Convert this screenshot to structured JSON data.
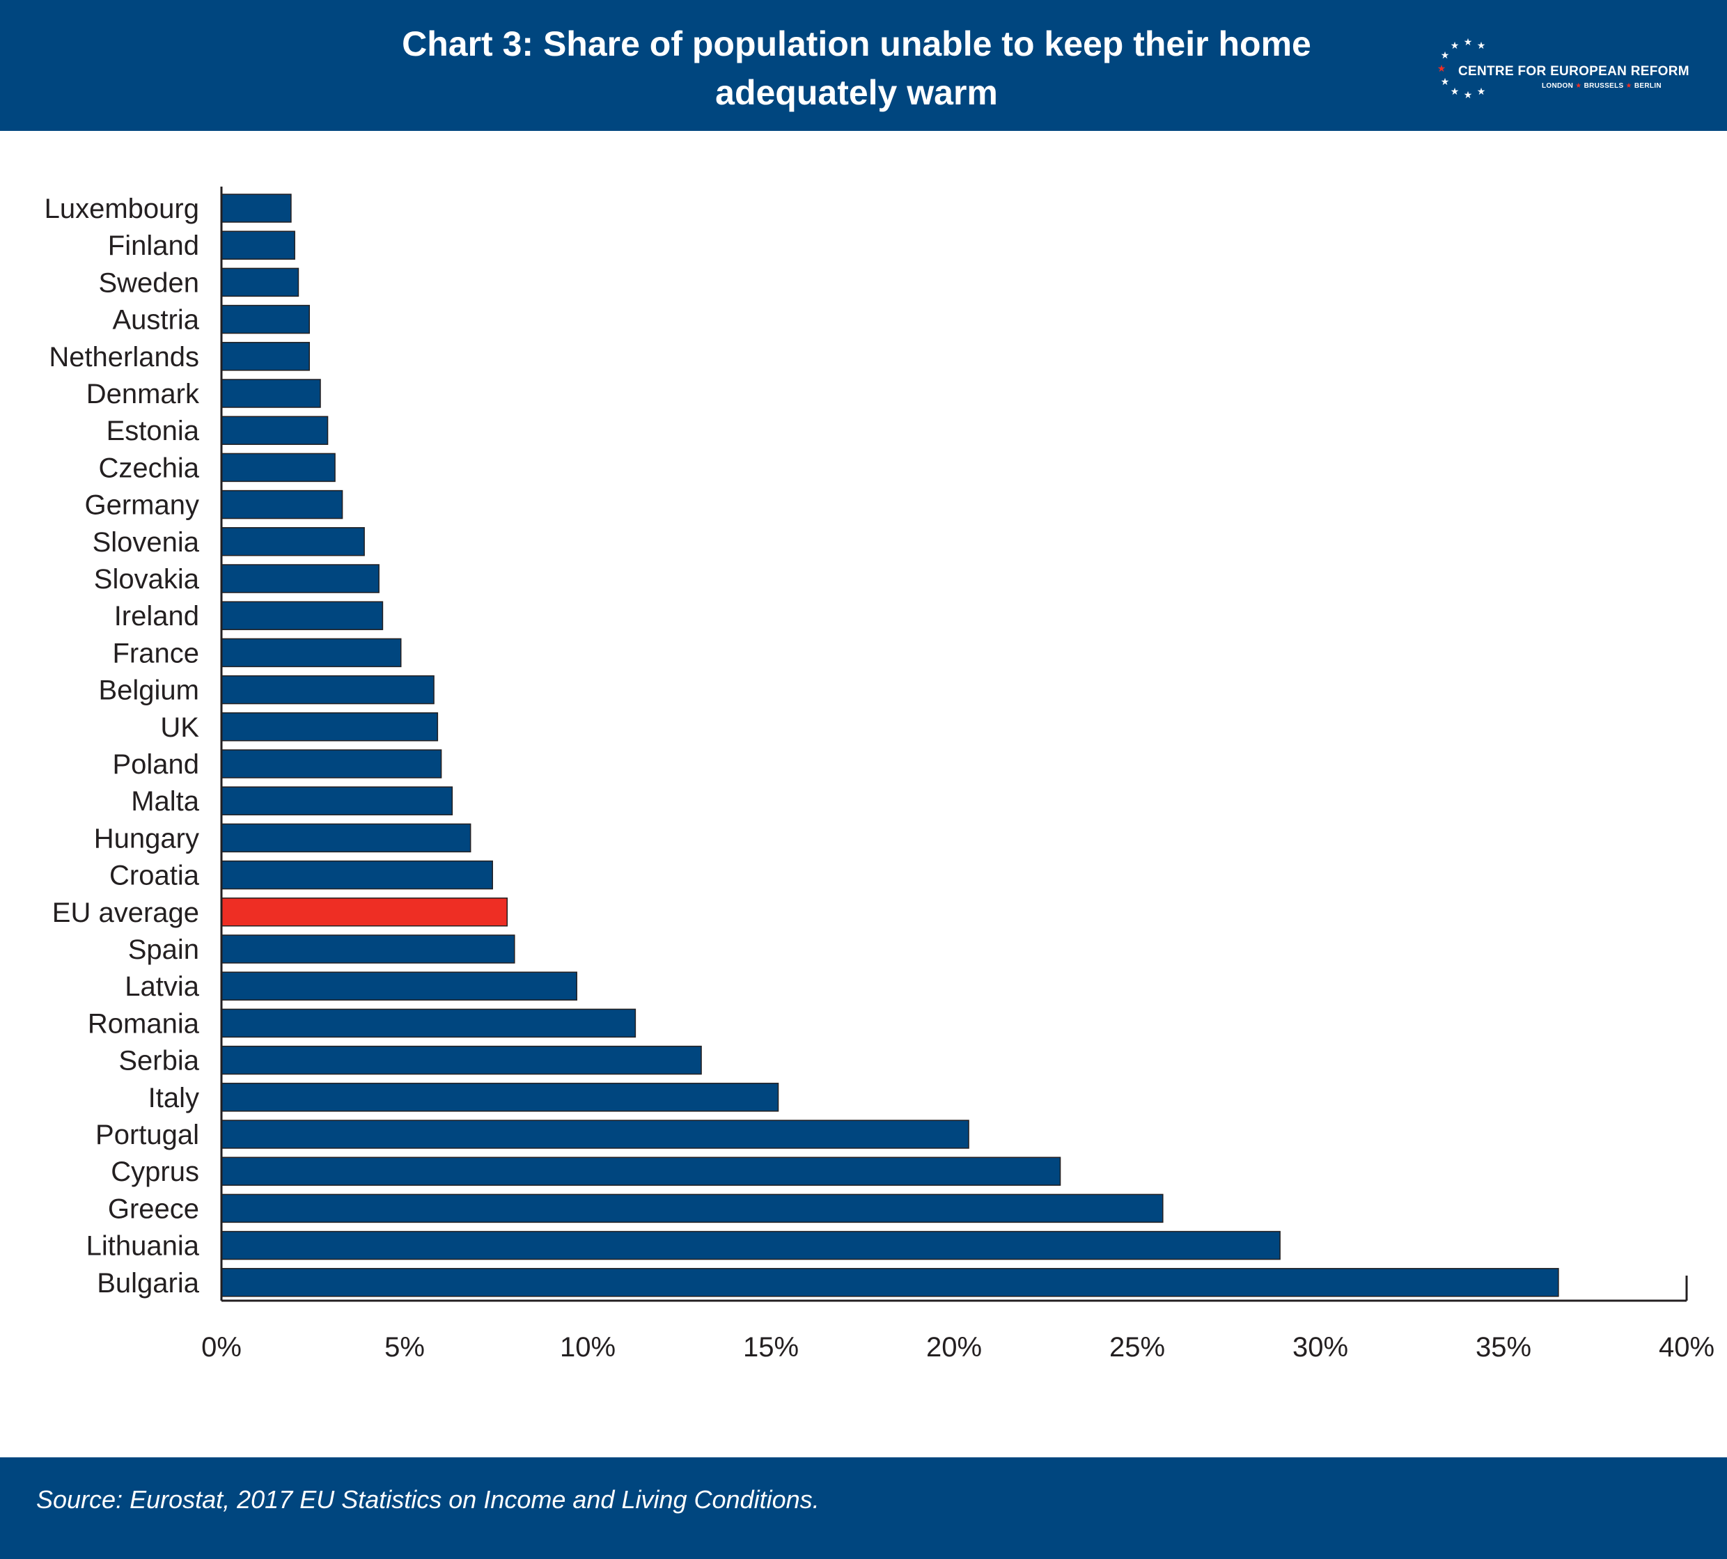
{
  "header": {
    "title_line1": "Chart 3: Share of population unable to keep their home",
    "title_line2": "adequately warm",
    "logo_name": "CENTRE FOR EUROPEAN REFORM",
    "logo_city1": "LONDON",
    "logo_city2": "BRUSSELS",
    "logo_city3": "BERLIN"
  },
  "footer": {
    "source": "Source: Eurostat, 2017 EU Statistics on Income and Living Conditions."
  },
  "colors": {
    "header_bg": "#00467f",
    "bar": "#00467f",
    "highlight_bar": "#ee2e24",
    "logo_star_accent": "#ee2e24"
  },
  "chart_data": {
    "type": "bar",
    "orientation": "horizontal",
    "title": "Chart 3: Share of population unable to keep their home adequately warm",
    "categories": [
      "Luxembourg",
      "Finland",
      "Sweden",
      "Austria",
      "Netherlands",
      "Denmark",
      "Estonia",
      "Czechia",
      "Germany",
      "Slovenia",
      "Slovakia",
      "Ireland",
      "France",
      "Belgium",
      "UK",
      "Poland",
      "Malta",
      "Hungary",
      "Croatia",
      "EU average",
      "Spain",
      "Latvia",
      "Romania",
      "Serbia",
      "Italy",
      "Portugal",
      "Cyprus",
      "Greece",
      "Lithuania",
      "Bulgaria"
    ],
    "values": [
      1.9,
      2.0,
      2.1,
      2.4,
      2.4,
      2.7,
      2.9,
      3.1,
      3.3,
      3.9,
      4.3,
      4.4,
      4.9,
      5.8,
      5.9,
      6.0,
      6.3,
      6.8,
      7.4,
      7.8,
      8.0,
      9.7,
      11.3,
      13.1,
      15.2,
      20.4,
      22.9,
      25.7,
      28.9,
      36.5
    ],
    "highlight": "EU average",
    "xlim": [
      0,
      40
    ],
    "xticks": [
      "0%",
      "5%",
      "10%",
      "15%",
      "20%",
      "25%",
      "30%",
      "35%",
      "40%"
    ],
    "xlabel": "",
    "ylabel": "",
    "grid": false,
    "legend": "none"
  }
}
